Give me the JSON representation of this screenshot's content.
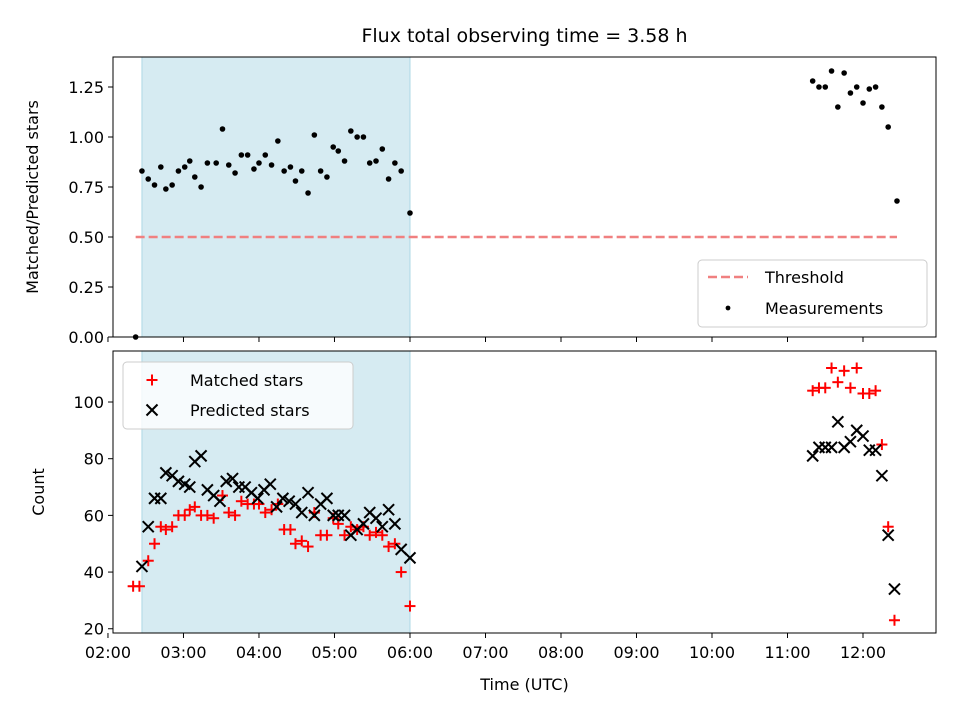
{
  "chart_data": [
    {
      "type": "scatter",
      "title": "Flux total observing time = 3.58 h",
      "ylabel": "Matched/Predicted stars",
      "xlabel": "",
      "xlim": [
        "02:04",
        "12:58"
      ],
      "ylim": [
        0,
        1.4
      ],
      "yticks": [
        0.0,
        0.25,
        0.5,
        0.75,
        1.0,
        1.25
      ],
      "ytick_labels": [
        "0.00",
        "0.25",
        "0.50",
        "0.75",
        "1.00",
        "1.25"
      ],
      "shaded_span": [
        "02:27",
        "06:00"
      ],
      "shaded_color": "#add8e6",
      "legend": {
        "position": "lower right",
        "entries": [
          "Threshold",
          "Measurements"
        ]
      },
      "threshold": {
        "name": "Threshold",
        "x": [
          "02:22",
          "12:27"
        ],
        "y": 0.5,
        "color": "#f08080",
        "style": "dashed"
      },
      "series": [
        {
          "name": "Measurements",
          "marker": "dot",
          "color": "#000000",
          "points": [
            [
              "02:22",
              0.0
            ],
            [
              "02:27",
              0.83
            ],
            [
              "02:32",
              0.79
            ],
            [
              "02:37",
              0.76
            ],
            [
              "02:42",
              0.85
            ],
            [
              "02:46",
              0.74
            ],
            [
              "02:51",
              0.76
            ],
            [
              "02:56",
              0.83
            ],
            [
              "03:01",
              0.85
            ],
            [
              "03:05",
              0.88
            ],
            [
              "03:09",
              0.8
            ],
            [
              "03:14",
              0.75
            ],
            [
              "03:19",
              0.87
            ],
            [
              "03:26",
              0.87
            ],
            [
              "03:31",
              1.04
            ],
            [
              "03:36",
              0.86
            ],
            [
              "03:41",
              0.82
            ],
            [
              "03:46",
              0.91
            ],
            [
              "03:51",
              0.91
            ],
            [
              "03:56",
              0.84
            ],
            [
              "04:00",
              0.87
            ],
            [
              "04:05",
              0.91
            ],
            [
              "04:10",
              0.86
            ],
            [
              "04:15",
              0.98
            ],
            [
              "04:20",
              0.83
            ],
            [
              "04:25",
              0.85
            ],
            [
              "04:29",
              0.78
            ],
            [
              "04:34",
              0.83
            ],
            [
              "04:39",
              0.72
            ],
            [
              "04:44",
              1.01
            ],
            [
              "04:49",
              0.83
            ],
            [
              "04:54",
              0.8
            ],
            [
              "04:59",
              0.95
            ],
            [
              "05:03",
              0.93
            ],
            [
              "05:08",
              0.88
            ],
            [
              "05:13",
              1.03
            ],
            [
              "05:18",
              1.0
            ],
            [
              "05:23",
              1.0
            ],
            [
              "05:28",
              0.87
            ],
            [
              "05:33",
              0.88
            ],
            [
              "05:38",
              0.94
            ],
            [
              "05:43",
              0.79
            ],
            [
              "05:48",
              0.87
            ],
            [
              "05:53",
              0.83
            ],
            [
              "06:00",
              0.62
            ],
            [
              "11:20",
              1.28
            ],
            [
              "11:25",
              1.25
            ],
            [
              "11:30",
              1.25
            ],
            [
              "11:35",
              1.33
            ],
            [
              "11:40",
              1.15
            ],
            [
              "11:45",
              1.32
            ],
            [
              "11:50",
              1.22
            ],
            [
              "11:55",
              1.25
            ],
            [
              "12:00",
              1.17
            ],
            [
              "12:05",
              1.24
            ],
            [
              "12:10",
              1.25
            ],
            [
              "12:15",
              1.15
            ],
            [
              "12:20",
              1.05
            ],
            [
              "12:27",
              0.68
            ]
          ]
        }
      ]
    },
    {
      "type": "scatter",
      "title": "",
      "ylabel": "Count",
      "xlabel": "Time (UTC)",
      "xlim": [
        "02:04",
        "12:58"
      ],
      "ylim": [
        18.5,
        118
      ],
      "yticks": [
        20,
        40,
        60,
        80,
        100
      ],
      "ytick_labels": [
        "20",
        "40",
        "60",
        "80",
        "100"
      ],
      "xticks": [
        "02:00",
        "03:00",
        "04:00",
        "05:00",
        "06:00",
        "07:00",
        "08:00",
        "09:00",
        "10:00",
        "11:00",
        "12:00"
      ],
      "xtick_labels": [
        "02:00",
        "03:00",
        "04:00",
        "05:00",
        "06:00",
        "07:00",
        "08:00",
        "09:00",
        "10:00",
        "11:00",
        "12:00"
      ],
      "shaded_span": [
        "02:27",
        "06:00"
      ],
      "shaded_color": "#add8e6",
      "legend": {
        "position": "upper left",
        "entries": [
          "Matched stars",
          "Predicted stars"
        ]
      },
      "series": [
        {
          "name": "Matched stars",
          "marker": "plus",
          "color": "#ff0000",
          "points": [
            [
              "02:20",
              35
            ],
            [
              "02:25",
              35
            ],
            [
              "02:32",
              44
            ],
            [
              "02:37",
              50
            ],
            [
              "02:42",
              56
            ],
            [
              "02:46",
              55
            ],
            [
              "02:51",
              56
            ],
            [
              "02:56",
              60
            ],
            [
              "03:01",
              60
            ],
            [
              "03:05",
              62
            ],
            [
              "03:09",
              63
            ],
            [
              "03:14",
              60
            ],
            [
              "03:19",
              60
            ],
            [
              "03:24",
              59
            ],
            [
              "03:31",
              67
            ],
            [
              "03:36",
              61
            ],
            [
              "03:41",
              60
            ],
            [
              "03:46",
              65
            ],
            [
              "03:51",
              64
            ],
            [
              "03:56",
              64
            ],
            [
              "04:00",
              64
            ],
            [
              "04:05",
              61
            ],
            [
              "04:10",
              62
            ],
            [
              "04:15",
              64
            ],
            [
              "04:20",
              55
            ],
            [
              "04:25",
              55
            ],
            [
              "04:29",
              50
            ],
            [
              "04:34",
              51
            ],
            [
              "04:39",
              49
            ],
            [
              "04:44",
              61
            ],
            [
              "04:49",
              53
            ],
            [
              "04:54",
              53
            ],
            [
              "04:59",
              59
            ],
            [
              "05:03",
              57
            ],
            [
              "05:08",
              53
            ],
            [
              "05:13",
              56
            ],
            [
              "05:18",
              55
            ],
            [
              "05:23",
              56
            ],
            [
              "05:28",
              53
            ],
            [
              "05:33",
              54
            ],
            [
              "05:38",
              53
            ],
            [
              "05:43",
              49
            ],
            [
              "05:48",
              50
            ],
            [
              "05:53",
              40
            ],
            [
              "06:00",
              28
            ],
            [
              "11:20",
              104
            ],
            [
              "11:25",
              105
            ],
            [
              "11:30",
              105
            ],
            [
              "11:35",
              112
            ],
            [
              "11:40",
              107
            ],
            [
              "11:45",
              111
            ],
            [
              "11:50",
              105
            ],
            [
              "11:55",
              112
            ],
            [
              "12:00",
              103
            ],
            [
              "12:05",
              103
            ],
            [
              "12:10",
              104
            ],
            [
              "12:15",
              85
            ],
            [
              "12:20",
              56
            ],
            [
              "12:25",
              23
            ]
          ]
        },
        {
          "name": "Predicted stars",
          "marker": "x",
          "color": "#000000",
          "points": [
            [
              "02:27",
              42
            ],
            [
              "02:32",
              56
            ],
            [
              "02:37",
              66
            ],
            [
              "02:42",
              66
            ],
            [
              "02:46",
              75
            ],
            [
              "02:51",
              74
            ],
            [
              "02:56",
              72
            ],
            [
              "03:01",
              71
            ],
            [
              "03:05",
              70
            ],
            [
              "03:09",
              79
            ],
            [
              "03:14",
              81
            ],
            [
              "03:19",
              69
            ],
            [
              "03:24",
              67
            ],
            [
              "03:29",
              65
            ],
            [
              "03:34",
              72
            ],
            [
              "03:39",
              73
            ],
            [
              "03:44",
              70
            ],
            [
              "03:49",
              70
            ],
            [
              "03:54",
              68
            ],
            [
              "03:59",
              66
            ],
            [
              "04:04",
              69
            ],
            [
              "04:09",
              71
            ],
            [
              "04:14",
              63
            ],
            [
              "04:19",
              66
            ],
            [
              "04:24",
              65
            ],
            [
              "04:29",
              64
            ],
            [
              "04:34",
              61
            ],
            [
              "04:39",
              68
            ],
            [
              "04:44",
              60
            ],
            [
              "04:49",
              64
            ],
            [
              "04:54",
              66
            ],
            [
              "04:59",
              60
            ],
            [
              "05:03",
              60
            ],
            [
              "05:08",
              60
            ],
            [
              "05:13",
              53
            ],
            [
              "05:18",
              55
            ],
            [
              "05:23",
              57
            ],
            [
              "05:28",
              61
            ],
            [
              "05:33",
              59
            ],
            [
              "05:38",
              56
            ],
            [
              "05:43",
              62
            ],
            [
              "05:48",
              57
            ],
            [
              "05:53",
              48
            ],
            [
              "06:00",
              45
            ],
            [
              "11:20",
              81
            ],
            [
              "11:25",
              84
            ],
            [
              "11:30",
              84
            ],
            [
              "11:35",
              84
            ],
            [
              "11:40",
              93
            ],
            [
              "11:45",
              84
            ],
            [
              "11:50",
              86
            ],
            [
              "11:55",
              90
            ],
            [
              "12:00",
              88
            ],
            [
              "12:05",
              83
            ],
            [
              "12:10",
              83
            ],
            [
              "12:15",
              74
            ],
            [
              "12:20",
              53
            ],
            [
              "12:25",
              34
            ]
          ]
        }
      ]
    }
  ]
}
